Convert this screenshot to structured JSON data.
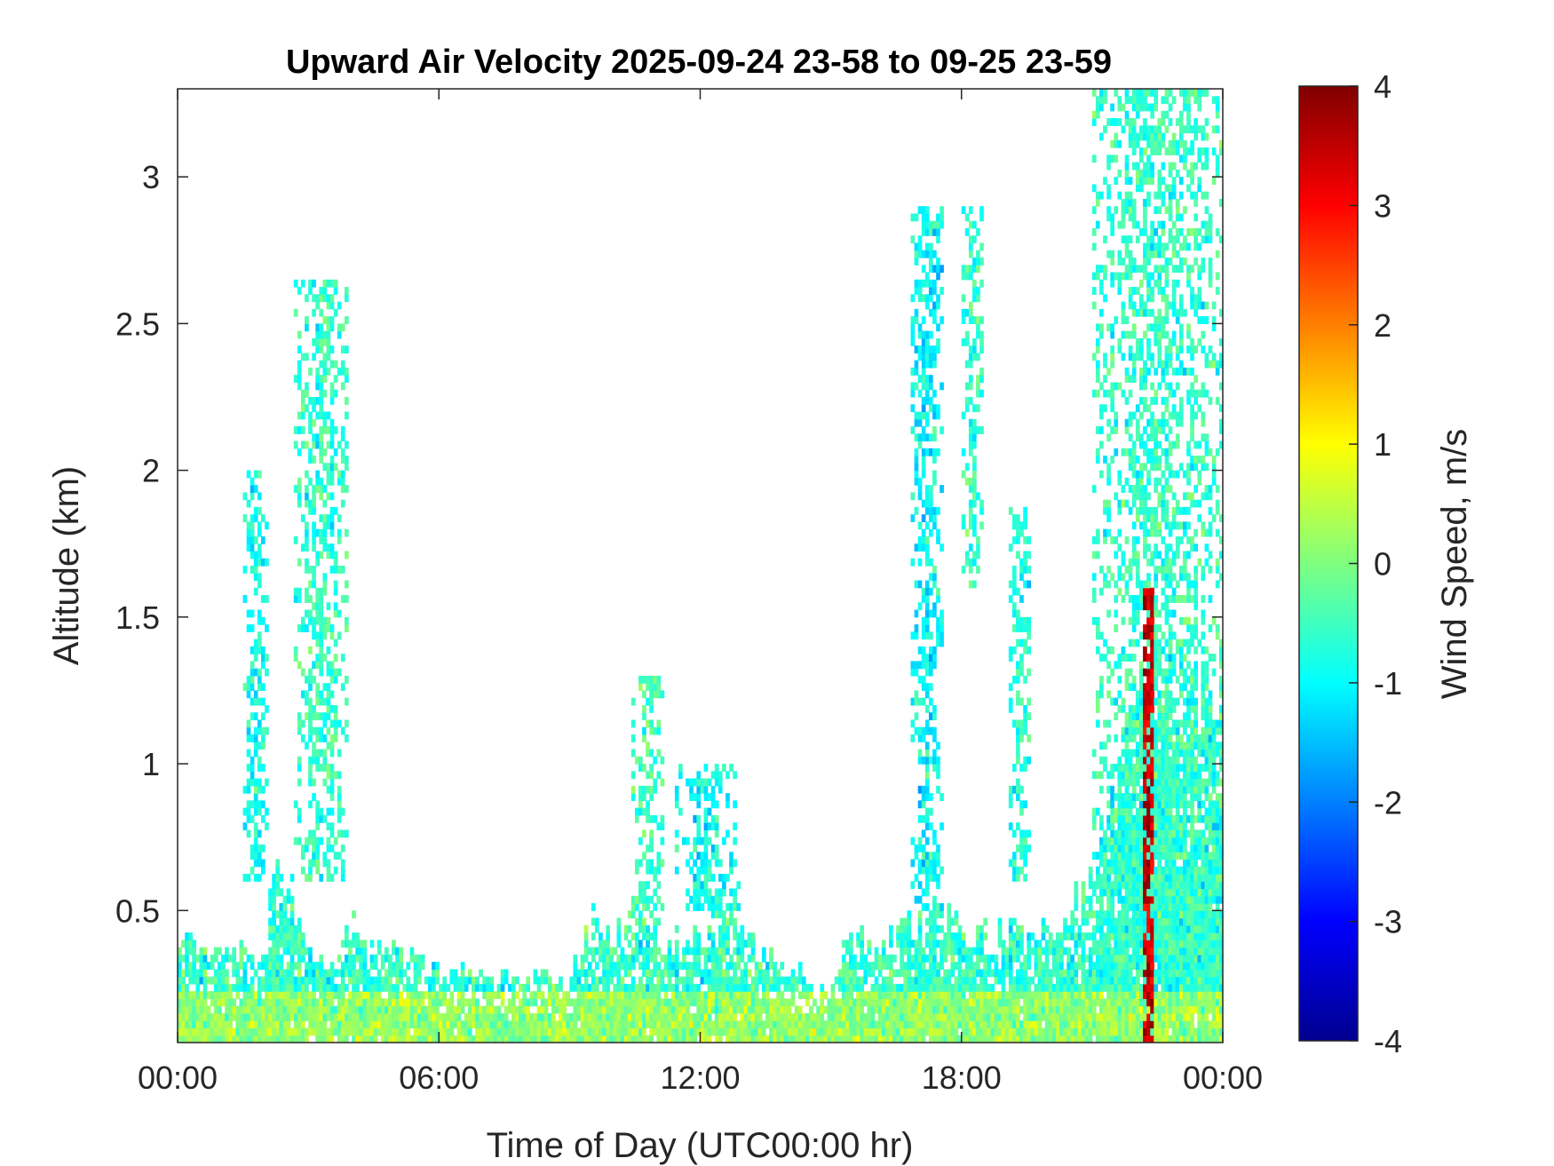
{
  "chart_data": {
    "type": "heatmap",
    "title": "Upward Air Velocity 2025-09-24 23-58 to 09-25 23-59",
    "xlabel": "Time of Day (UTC00:00 hr)",
    "ylabel": "Altitude (km)",
    "colorbar_label": "Wind Speed, m/s",
    "colormap": "jet",
    "x_unit": "hours",
    "xlim": [
      0,
      24
    ],
    "ylim": [
      0.05,
      3.3
    ],
    "clim": [
      -4,
      4
    ],
    "x_ticks": [
      {
        "value": 0,
        "label": "00:00"
      },
      {
        "value": 6,
        "label": "06:00"
      },
      {
        "value": 12,
        "label": "12:00"
      },
      {
        "value": 18,
        "label": "18:00"
      },
      {
        "value": 24,
        "label": "00:00"
      }
    ],
    "y_ticks": [
      {
        "value": 0.5,
        "label": "0.5"
      },
      {
        "value": 1,
        "label": "1"
      },
      {
        "value": 1.5,
        "label": "1.5"
      },
      {
        "value": 2,
        "label": "2"
      },
      {
        "value": 2.5,
        "label": "2.5"
      },
      {
        "value": 3,
        "label": "3"
      }
    ],
    "colorbar_ticks": [
      {
        "value": 4,
        "label": "4"
      },
      {
        "value": 3,
        "label": "3"
      },
      {
        "value": 2,
        "label": "2"
      },
      {
        "value": 1,
        "label": "1"
      },
      {
        "value": 0,
        "label": "0"
      },
      {
        "value": -1,
        "label": "-1"
      },
      {
        "value": -2,
        "label": "-2"
      },
      {
        "value": -3,
        "label": "-3"
      },
      {
        "value": -4,
        "label": "-4"
      }
    ],
    "coverage_profile": {
      "hours": [
        0,
        1,
        1.3,
        2,
        2.3,
        3,
        3.5,
        4,
        4.5,
        5,
        6,
        7,
        8,
        9,
        9.5,
        10,
        11,
        12,
        12.5,
        13,
        14,
        15,
        15.5,
        16,
        17,
        17.5,
        18,
        19,
        20,
        21,
        22,
        23,
        24
      ],
      "max_altitude_km": [
        0.38,
        0.38,
        0.35,
        0.35,
        0.7,
        0.35,
        0.3,
        0.5,
        0.35,
        0.35,
        0.3,
        0.27,
        0.27,
        0.27,
        0.45,
        0.45,
        0.4,
        0.38,
        0.6,
        0.4,
        0.33,
        0.22,
        0.45,
        0.38,
        0.45,
        0.5,
        0.42,
        0.42,
        0.42,
        0.6,
        1.2,
        1.25,
        1.3
      ]
    },
    "cloud_regions": [
      {
        "hour_start": 1.5,
        "hour_end": 2.1,
        "alt_low_km": 0.6,
        "alt_high_km": 2.0,
        "velocity_ms": -0.8
      },
      {
        "hour_start": 2.7,
        "hour_end": 3.95,
        "alt_low_km": 0.6,
        "alt_high_km": 2.65,
        "velocity_ms": -0.6
      },
      {
        "hour_start": 10.4,
        "hour_end": 11.2,
        "alt_low_km": 0.45,
        "alt_high_km": 1.3,
        "velocity_ms": -0.5
      },
      {
        "hour_start": 11.4,
        "hour_end": 12.9,
        "alt_low_km": 0.5,
        "alt_high_km": 1.0,
        "velocity_ms": -0.9
      },
      {
        "hour_start": 16.8,
        "hour_end": 17.6,
        "alt_low_km": 0.5,
        "alt_high_km": 2.9,
        "velocity_ms": -1.0
      },
      {
        "hour_start": 18.0,
        "hour_end": 18.5,
        "alt_low_km": 1.6,
        "alt_high_km": 2.9,
        "velocity_ms": -0.6
      },
      {
        "hour_start": 19.1,
        "hour_end": 19.6,
        "alt_low_km": 0.6,
        "alt_high_km": 1.9,
        "velocity_ms": -0.7
      },
      {
        "hour_start": 21.0,
        "hour_end": 24.0,
        "alt_low_km": 0.5,
        "alt_high_km": 3.3,
        "velocity_ms": -0.6
      }
    ],
    "strong_updraft": {
      "hour_start": 22.15,
      "hour_end": 22.45,
      "alt_low_km": 0.05,
      "alt_high_km": 1.6,
      "velocity_ms": 4
    }
  }
}
